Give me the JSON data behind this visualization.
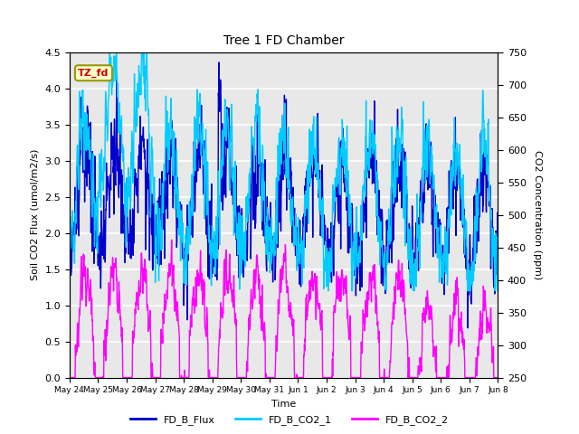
{
  "title": "Tree 1 FD Chamber",
  "xlabel": "Time",
  "ylabel_left": "Soil CO2 Flux (umol/m2/s)",
  "ylabel_right": "CO2 Concentration (ppm)",
  "ylim_left": [
    0.0,
    4.5
  ],
  "ylim_right": [
    250,
    750
  ],
  "annotation_text": "TZ_fd",
  "annotation_color": "#cc0000",
  "annotation_bg": "#ffffcc",
  "annotation_border": "#999900",
  "series": [
    "FD_B_Flux",
    "FD_B_CO2_1",
    "FD_B_CO2_2"
  ],
  "colors": [
    "#0000cc",
    "#00ccff",
    "#ff00ff"
  ],
  "linewidths": [
    1.0,
    1.0,
    1.0
  ],
  "background_color": "#e8e8e8",
  "grid_color": "#ffffff",
  "tick_labels": [
    "May 24",
    "May 25",
    "May 26",
    "May 27",
    "May 28",
    "May 29",
    "May 30",
    "May 31",
    "Jun 1",
    "Jun 2",
    "Jun 3",
    "Jun 4",
    "Jun 5",
    "Jun 6",
    "Jun 7",
    "Jun 8"
  ],
  "yticks_left": [
    0.0,
    0.5,
    1.0,
    1.5,
    2.0,
    2.5,
    3.0,
    3.5,
    4.0,
    4.5
  ],
  "yticks_right": [
    250,
    300,
    350,
    400,
    450,
    500,
    550,
    600,
    650,
    700,
    750
  ]
}
